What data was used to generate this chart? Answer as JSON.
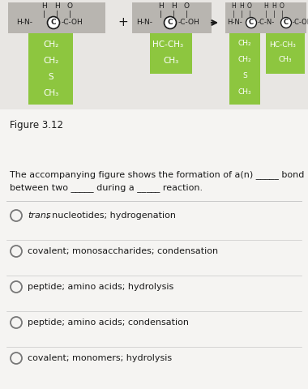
{
  "bg_top": "#e8e6e3",
  "bg_bottom": "#f0efed",
  "green_color": "#8dc63f",
  "gray_box_color": "#b8b5b0",
  "text_color": "#3a3a3a",
  "dark_text": "#1a1a1a",
  "circle_color": "#777777",
  "divider_color": "#c8c8c8",
  "fig_label": "Figure 3.12",
  "question_line1": "The accompanying figure shows the formation of a(n) _____ bond",
  "question_line2": "between two _____ during a _____ reaction.",
  "choices": [
    {
      "text": "trans; nucleotides; hydrogenation",
      "italic": true
    },
    {
      "text": "covalent; monosaccharides; condensation",
      "italic": false
    },
    {
      "text": "peptide; amino acids; hydrolysis",
      "italic": false
    },
    {
      "text": "peptide; amino acids; condensation",
      "italic": false
    },
    {
      "text": "covalent; monomers; hydrolysis",
      "italic": false
    }
  ],
  "choice_fontsize": 8.0,
  "body_fontsize": 8.0,
  "fig_label_fontsize": 8.5,
  "formula_fontsize": 6.5,
  "side_chain_fontsize": 7.5
}
